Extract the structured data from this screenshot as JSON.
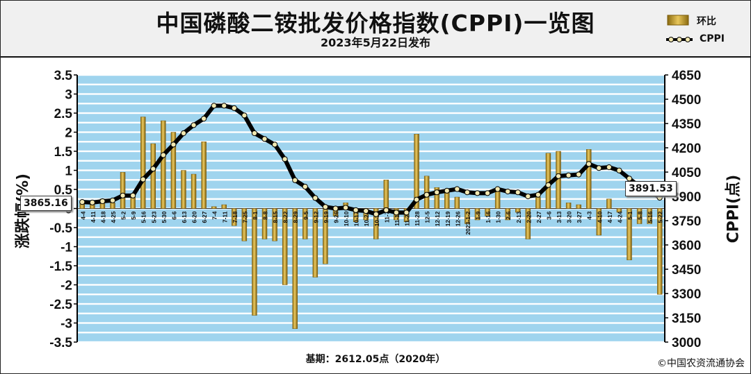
{
  "header": {
    "title": "中国磷酸二铵批发价格指数(CPPI)一览图",
    "subtitle": "2023年5月22日发布"
  },
  "legend": {
    "bar_label": "环比",
    "line_label": "CPPI"
  },
  "footer": {
    "base_text": "基期：2612.05点（2020年）",
    "copyright": "©中国农资流通协会"
  },
  "callouts": {
    "start_value": "3865.16",
    "end_value": "3891.53"
  },
  "colors": {
    "bar": "#c8a43c",
    "bar_dark": "#8a6a10",
    "band": "#9fd4ee",
    "line": "#000000",
    "marker": "#f2e8b0"
  },
  "chart_data": {
    "type": "bar+line",
    "ylabel_left": "涨跌幅(%)",
    "ylabel_right": "CPPI(点)",
    "ylim_left": [
      -3.5,
      3.5
    ],
    "yticks_left": [
      "3.5",
      "3",
      "2.5",
      "2",
      "1.5",
      "1",
      "0.5",
      "0",
      "-0.5",
      "-1",
      "-1.5",
      "-2",
      "-2.5",
      "-3",
      "-3.5"
    ],
    "ylim_right": [
      3000,
      4650
    ],
    "yticks_right": [
      "4650",
      "4500",
      "4350",
      "4200",
      "4050",
      "3900",
      "3750",
      "3600",
      "3450",
      "3300",
      "3150",
      "3000"
    ],
    "categories": [
      "4-4",
      "4-11",
      "4-18",
      "4-25",
      "5-2",
      "5-9",
      "5-16",
      "5-23",
      "5-30",
      "6-6",
      "6-13",
      "6-20",
      "6-27",
      "7-4",
      "7-11",
      "7-18",
      "7-25",
      "8-1",
      "8-8",
      "8-15",
      "8-22",
      "8-29",
      "9-5",
      "9-12",
      "9-19",
      "9-26",
      "10-10",
      "10-17",
      "10-24",
      "10-31",
      "11-7",
      "11-14",
      "11-21",
      "11-28",
      "12-5",
      "12-12",
      "12-19",
      "12-26",
      "2023-1-2",
      "1-9",
      "1-16",
      "1-30",
      "2-6",
      "2-13",
      "2-20",
      "2-27",
      "3-6",
      "3-13",
      "3-20",
      "3-27",
      "4-3",
      "4-10",
      "4-17",
      "4-24",
      "5-1",
      "5-8",
      "5-16",
      "5-22"
    ],
    "bar_values": [
      0.2,
      0.1,
      0.25,
      0.15,
      0.95,
      0.3,
      2.4,
      1.7,
      2.3,
      2.0,
      1.0,
      0.9,
      1.75,
      0.05,
      0.1,
      -0.45,
      -0.85,
      -2.8,
      -0.8,
      -0.85,
      -2.0,
      -3.15,
      -0.8,
      -1.8,
      -1.45,
      -0.2,
      0.15,
      -0.35,
      -0.3,
      -0.8,
      0.75,
      -0.3,
      -0.35,
      1.95,
      0.85,
      0.55,
      0.5,
      0.3,
      -0.4,
      -0.3,
      -0.2,
      0.5,
      -0.3,
      -0.1,
      -0.8,
      0.3,
      1.45,
      1.5,
      0.15,
      0.1,
      1.55,
      -0.7,
      0.25,
      -0.1,
      -1.35,
      -0.4,
      -0.4,
      -2.25
    ],
    "line_values": [
      3865.16,
      3862,
      3870,
      3875,
      3905,
      3905,
      4005,
      4070,
      4155,
      4220,
      4290,
      4340,
      4380,
      4460,
      4460,
      4445,
      4400,
      4290,
      4255,
      4220,
      4130,
      4000,
      3960,
      3890,
      3835,
      3825,
      3830,
      3815,
      3810,
      3790,
      3815,
      3800,
      3800,
      3880,
      3910,
      3925,
      3935,
      3945,
      3925,
      3920,
      3920,
      3945,
      3930,
      3925,
      3900,
      3910,
      3970,
      4025,
      4030,
      4035,
      4100,
      4075,
      4080,
      4060,
      4010,
      3960,
      3935,
      3891.53
    ]
  }
}
